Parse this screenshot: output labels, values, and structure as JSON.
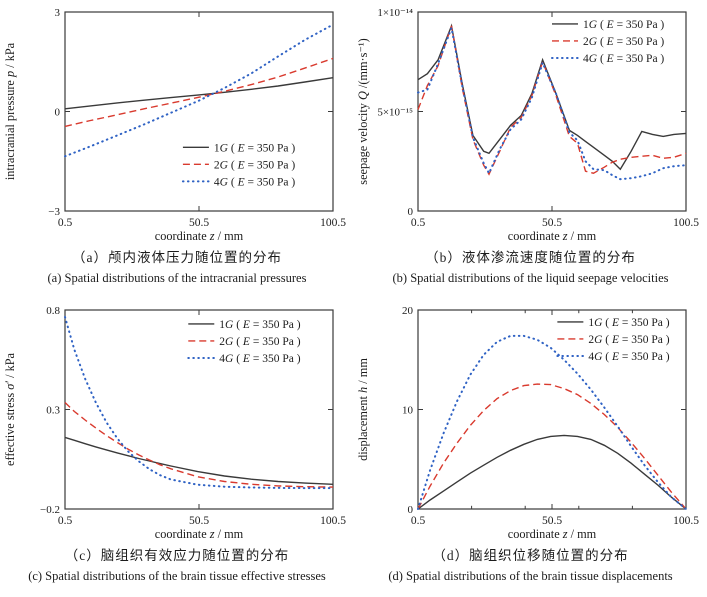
{
  "line_styles": {
    "solid": {
      "color": "#3a3a3a",
      "width": 1.4,
      "dash": "",
      "cap": "butt"
    },
    "dashed": {
      "color": "#d93a2e",
      "width": 1.4,
      "dash": "7 4",
      "cap": "butt"
    },
    "dotted": {
      "color": "#2f62c4",
      "width": 2.0,
      "dash": "0.6 4.4",
      "cap": "round"
    }
  },
  "chart_data": [
    {
      "type": "line",
      "caption_zh": "（a）颅内液体压力随位置的分布",
      "caption_en": "(a) Spatial distributions of the intracranial pressures",
      "xlabel": "coordinate z / mm",
      "xlabel_runs": [
        {
          "t": "coordinate "
        },
        {
          "t": "z",
          "i": true
        },
        {
          "t": " / mm"
        }
      ],
      "ylabel": "intracranial pressure p / kPa",
      "ylabel_runs": [
        {
          "t": "intracranial pressure "
        },
        {
          "t": "p",
          "i": true
        },
        {
          "t": " / kPa"
        }
      ],
      "xlim": [
        0.5,
        100.5
      ],
      "ylim": [
        -3,
        3
      ],
      "xticks": [
        {
          "v": 0.5,
          "l": "0.5"
        },
        {
          "v": 50.5,
          "l": "50.5"
        },
        {
          "v": 100.5,
          "l": "100.5"
        }
      ],
      "minor_xticks": [],
      "yticks": [
        {
          "v": -3,
          "l": "−3"
        },
        {
          "v": 0,
          "l": "0"
        },
        {
          "v": 3,
          "l": "3"
        }
      ],
      "legend": {
        "x": 0.44,
        "y": 0.64
      },
      "x": [
        0.5,
        10,
        20,
        30,
        40,
        50.5,
        60,
        70,
        80,
        90,
        100.5
      ],
      "series": [
        {
          "name": "1G",
          "style": "solid",
          "label": "1G ( E = 350 Pa )",
          "label_runs": [
            {
              "t": "1"
            },
            {
              "t": "G",
              "i": true
            },
            {
              "t": " ( "
            },
            {
              "t": "E",
              "i": true
            },
            {
              "t": " = 350 Pa )"
            }
          ],
          "y": [
            0.08,
            0.17,
            0.26,
            0.34,
            0.42,
            0.5,
            0.58,
            0.67,
            0.77,
            0.89,
            1.02
          ]
        },
        {
          "name": "2G",
          "style": "dashed",
          "label": "2G ( E = 350 Pa )",
          "label_runs": [
            {
              "t": "2"
            },
            {
              "t": "G",
              "i": true
            },
            {
              "t": " ( "
            },
            {
              "t": "E",
              "i": true
            },
            {
              "t": " = 350 Pa )"
            }
          ],
          "y": [
            -0.45,
            -0.27,
            -0.1,
            0.08,
            0.25,
            0.43,
            0.61,
            0.81,
            1.04,
            1.31,
            1.6
          ]
        },
        {
          "name": "4G",
          "style": "dotted",
          "label": "4G ( E = 350 Pa )",
          "label_runs": [
            {
              "t": "4"
            },
            {
              "t": "G",
              "i": true
            },
            {
              "t": " ( "
            },
            {
              "t": "E",
              "i": true
            },
            {
              "t": " = 350 Pa )"
            }
          ],
          "y": [
            -1.35,
            -1.05,
            -0.72,
            -0.39,
            -0.04,
            0.33,
            0.71,
            1.15,
            1.66,
            2.16,
            2.62
          ]
        }
      ]
    },
    {
      "type": "line",
      "caption_zh": "（b）液体渗流速度随位置的分布",
      "caption_en": "(b) Spatial distributions of the liquid seepage velocities",
      "xlabel": "coordinate z / mm",
      "xlabel_runs": [
        {
          "t": "coordinate "
        },
        {
          "t": "z",
          "i": true
        },
        {
          "t": " / mm"
        }
      ],
      "ylabel": "seepage velocity Q /(mm·s⁻¹)",
      "ylabel_runs": [
        {
          "t": "seepage velocity "
        },
        {
          "t": "Q",
          "i": true
        },
        {
          "t": " /(mm·s⁻¹)"
        }
      ],
      "y_unit": "values plotted ×10⁻¹⁵",
      "xlim": [
        0.5,
        100.5
      ],
      "ylim": [
        0,
        10
      ],
      "xticks": [
        {
          "v": 0.5,
          "l": "0.5"
        },
        {
          "v": 50.5,
          "l": "50.5"
        },
        {
          "v": 100.5,
          "l": "100.5"
        }
      ],
      "minor_xticks": [],
      "yticks": [
        {
          "v": 0,
          "l": "0"
        },
        {
          "v": 5,
          "l": "5×10⁻¹⁵"
        },
        {
          "v": 10,
          "l": "1×10⁻¹⁴"
        }
      ],
      "legend": {
        "x": 0.5,
        "y": 0.02
      },
      "x": [
        0.5,
        4,
        8,
        13,
        17,
        21,
        25,
        27,
        31,
        35,
        39,
        43,
        47,
        52,
        57,
        60,
        63,
        66,
        70,
        73,
        76,
        80,
        84,
        88,
        92,
        96,
        100.5
      ],
      "series": [
        {
          "name": "1G",
          "style": "solid",
          "label": "1G ( E = 350 Pa )",
          "label_runs": [
            {
              "t": "1"
            },
            {
              "t": "G",
              "i": true
            },
            {
              "t": " ( "
            },
            {
              "t": "E",
              "i": true
            },
            {
              "t": " = 350 Pa )"
            }
          ],
          "y": [
            6.6,
            6.9,
            7.6,
            9.3,
            6.4,
            3.8,
            3.0,
            2.9,
            3.6,
            4.3,
            4.8,
            5.9,
            7.6,
            5.9,
            4.05,
            3.8,
            3.5,
            3.2,
            2.8,
            2.5,
            2.1,
            3.0,
            4.0,
            3.85,
            3.75,
            3.85,
            3.9
          ]
        },
        {
          "name": "2G",
          "style": "dashed",
          "label": "2G ( E = 350 Pa )",
          "label_runs": [
            {
              "t": "2"
            },
            {
              "t": "G",
              "i": true
            },
            {
              "t": " ( "
            },
            {
              "t": "E",
              "i": true
            },
            {
              "t": " = 350 Pa )"
            }
          ],
          "y": [
            5.1,
            6.3,
            7.3,
            9.3,
            6.2,
            3.6,
            2.3,
            1.85,
            3.0,
            4.2,
            4.7,
            5.8,
            7.5,
            5.8,
            3.75,
            3.4,
            2.0,
            1.9,
            2.2,
            2.45,
            2.6,
            2.7,
            2.75,
            2.8,
            2.65,
            2.7,
            2.9
          ]
        },
        {
          "name": "4G",
          "style": "dotted",
          "label": "4G ( E = 350 Pa )",
          "label_runs": [
            {
              "t": "4"
            },
            {
              "t": "G",
              "i": true
            },
            {
              "t": " ( "
            },
            {
              "t": "E",
              "i": true
            },
            {
              "t": " = 350 Pa )"
            }
          ],
          "y": [
            5.95,
            6.1,
            7.4,
            9.2,
            6.3,
            3.7,
            2.4,
            1.9,
            3.1,
            4.1,
            4.6,
            5.7,
            7.45,
            5.9,
            3.95,
            3.55,
            2.5,
            2.1,
            2.05,
            1.8,
            1.6,
            1.65,
            1.75,
            1.9,
            2.15,
            2.25,
            2.3
          ]
        }
      ]
    },
    {
      "type": "line",
      "caption_zh": "（c）脑组织有效应力随位置的分布",
      "caption_en": "(c) Spatial distributions of the brain tissue effective stresses",
      "xlabel": "coordinate z / mm",
      "xlabel_runs": [
        {
          "t": "coordinate "
        },
        {
          "t": "z",
          "i": true
        },
        {
          "t": " / mm"
        }
      ],
      "ylabel": "effective stress σ′ / kPa",
      "ylabel_runs": [
        {
          "t": "effective stress "
        },
        {
          "t": "σ′",
          "i": true
        },
        {
          "t": " / kPa"
        }
      ],
      "xlim": [
        0.5,
        100.5
      ],
      "ylim": [
        -0.2,
        0.8
      ],
      "xticks": [
        {
          "v": 0.5,
          "l": "0.5"
        },
        {
          "v": 50.5,
          "l": "50.5"
        },
        {
          "v": 100.5,
          "l": "100.5"
        }
      ],
      "minor_xticks": [],
      "yticks": [
        {
          "v": -0.2,
          "l": "−0.2"
        },
        {
          "v": 0.3,
          "l": "0.3"
        },
        {
          "v": 0.8,
          "l": "0.8"
        }
      ],
      "legend": {
        "x": 0.46,
        "y": 0.03
      },
      "x": [
        0.5,
        4,
        8,
        12,
        16,
        20,
        24,
        28,
        32,
        36,
        40,
        50,
        60,
        70,
        80,
        90,
        100.5
      ],
      "series": [
        {
          "name": "1G",
          "style": "solid",
          "label": "1G ( E = 350 Pa )",
          "label_runs": [
            {
              "t": "1"
            },
            {
              "t": "G",
              "i": true
            },
            {
              "t": " ( "
            },
            {
              "t": "E",
              "i": true
            },
            {
              "t": " = 350 Pa )"
            }
          ],
          "y": [
            0.16,
            0.145,
            0.128,
            0.112,
            0.097,
            0.082,
            0.068,
            0.054,
            0.041,
            0.028,
            0.016,
            -0.012,
            -0.034,
            -0.05,
            -0.062,
            -0.07,
            -0.076
          ]
        },
        {
          "name": "2G",
          "style": "dashed",
          "label": "2G ( E = 350 Pa )",
          "label_runs": [
            {
              "t": "2"
            },
            {
              "t": "G",
              "i": true
            },
            {
              "t": " ( "
            },
            {
              "t": "E",
              "i": true
            },
            {
              "t": " = 350 Pa )"
            }
          ],
          "y": [
            0.335,
            0.29,
            0.247,
            0.207,
            0.169,
            0.134,
            0.101,
            0.072,
            0.046,
            0.022,
            0.002,
            -0.038,
            -0.062,
            -0.076,
            -0.084,
            -0.088,
            -0.09
          ]
        },
        {
          "name": "4G",
          "style": "dotted",
          "label": "4G ( E = 350 Pa )",
          "label_runs": [
            {
              "t": "4"
            },
            {
              "t": "G",
              "i": true
            },
            {
              "t": " ( "
            },
            {
              "t": "E",
              "i": true
            },
            {
              "t": " = 350 Pa )"
            }
          ],
          "y": [
            0.765,
            0.6,
            0.455,
            0.335,
            0.235,
            0.155,
            0.09,
            0.04,
            0.0,
            -0.03,
            -0.052,
            -0.078,
            -0.088,
            -0.092,
            -0.094,
            -0.095,
            -0.095
          ]
        }
      ]
    },
    {
      "type": "line",
      "caption_zh": "（d）脑组织位移随位置的分布",
      "caption_en": "(d) Spatial distributions of the brain tissue displacements",
      "xlabel": "coordinate z / mm",
      "xlabel_runs": [
        {
          "t": "coordinate "
        },
        {
          "t": "z",
          "i": true
        },
        {
          "t": " / mm"
        }
      ],
      "ylabel": "displacement h / mm",
      "ylabel_runs": [
        {
          "t": "displacement "
        },
        {
          "t": "h",
          "i": true
        },
        {
          "t": " / mm"
        }
      ],
      "xlim": [
        0.5,
        100.5
      ],
      "ylim": [
        0,
        20
      ],
      "xticks": [
        {
          "v": 0.5,
          "l": "0.5"
        },
        {
          "v": 50.5,
          "l": "50.5"
        },
        {
          "v": 100.5,
          "l": "100.5"
        }
      ],
      "minor_xticks": [
        20.5,
        40.5,
        60.5,
        80.5
      ],
      "yticks": [
        {
          "v": 0,
          "l": "0"
        },
        {
          "v": 10,
          "l": "10"
        },
        {
          "v": 20,
          "l": "20"
        }
      ],
      "legend": {
        "x": 0.52,
        "y": 0.02
      },
      "x": [
        0.5,
        5,
        10,
        15,
        20,
        25,
        30,
        35,
        40,
        45,
        50,
        55,
        60,
        65,
        70,
        75,
        80,
        85,
        90,
        95,
        100.5
      ],
      "series": [
        {
          "name": "1G",
          "style": "solid",
          "label": "1G ( E = 350 Pa )",
          "label_runs": [
            {
              "t": "1"
            },
            {
              "t": "G",
              "i": true
            },
            {
              "t": " ( "
            },
            {
              "t": "E",
              "i": true
            },
            {
              "t": " = 350 Pa )"
            }
          ],
          "y": [
            0,
            0.9,
            1.8,
            2.7,
            3.6,
            4.4,
            5.2,
            5.9,
            6.5,
            7.0,
            7.3,
            7.4,
            7.3,
            7.0,
            6.4,
            5.6,
            4.6,
            3.5,
            2.4,
            1.2,
            0
          ]
        },
        {
          "name": "2G",
          "style": "dashed",
          "label": "2G ( E = 350 Pa )",
          "label_runs": [
            {
              "t": "2"
            },
            {
              "t": "G",
              "i": true
            },
            {
              "t": " ( "
            },
            {
              "t": "E",
              "i": true
            },
            {
              "t": " = 350 Pa )"
            }
          ],
          "y": [
            0,
            2.3,
            4.6,
            6.6,
            8.4,
            9.9,
            11.1,
            11.9,
            12.4,
            12.55,
            12.5,
            12.1,
            11.5,
            10.6,
            9.5,
            8.2,
            6.7,
            5.1,
            3.4,
            1.7,
            0
          ]
        },
        {
          "name": "4G",
          "style": "dotted",
          "label": "4G ( E = 350 Pa )",
          "label_runs": [
            {
              "t": "4"
            },
            {
              "t": "G",
              "i": true
            },
            {
              "t": " ( "
            },
            {
              "t": "E",
              "i": true
            },
            {
              "t": " = 350 Pa )"
            }
          ],
          "y": [
            0,
            3.9,
            7.6,
            10.8,
            13.5,
            15.5,
            16.8,
            17.4,
            17.4,
            17.0,
            16.2,
            15.0,
            13.6,
            12.0,
            10.2,
            8.3,
            6.3,
            4.4,
            2.7,
            1.2,
            0
          ]
        }
      ]
    }
  ]
}
